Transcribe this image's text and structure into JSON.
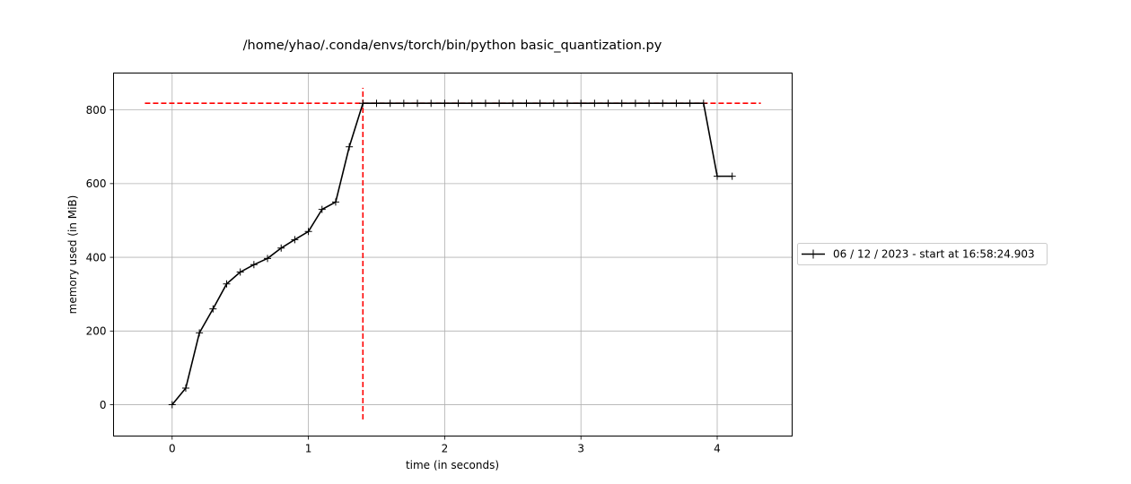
{
  "chart_data": {
    "type": "line",
    "title": "/home/yhao/.conda/envs/torch/bin/python basic_quantization.py",
    "xlabel": "time (in seconds)",
    "ylabel": "memory used (in MiB)",
    "xlim": [
      -0.43,
      4.55
    ],
    "ylim": [
      -85,
      900
    ],
    "xticks": [
      0,
      1,
      2,
      3,
      4
    ],
    "yticks": [
      0,
      200,
      400,
      600,
      800
    ],
    "grid": true,
    "legend_position": "outside-right",
    "series": [
      {
        "name": "06 / 12 / 2023 - start at 16:58:24.903",
        "color": "#000000",
        "marker": "plus",
        "x": [
          0.0,
          0.1,
          0.2,
          0.3,
          0.4,
          0.5,
          0.6,
          0.7,
          0.8,
          0.9,
          1.0,
          1.1,
          1.2,
          1.3,
          1.4,
          1.5,
          1.6,
          1.7,
          1.8,
          1.9,
          2.0,
          2.1,
          2.2,
          2.3,
          2.4,
          2.5,
          2.6,
          2.7,
          2.8,
          2.9,
          3.0,
          3.1,
          3.2,
          3.3,
          3.4,
          3.5,
          3.6,
          3.7,
          3.8,
          3.9,
          4.0,
          4.11
        ],
        "y": [
          0,
          45,
          195,
          260,
          328,
          360,
          380,
          397,
          425,
          448,
          470,
          530,
          550,
          700,
          818,
          818,
          818,
          818,
          818,
          818,
          818,
          818,
          818,
          818,
          818,
          818,
          818,
          818,
          818,
          818,
          818,
          818,
          818,
          818,
          818,
          818,
          818,
          818,
          818,
          818,
          620,
          620
        ]
      }
    ],
    "reference_lines": [
      {
        "orientation": "horizontal",
        "value": 818,
        "from": -0.2,
        "to": 4.32,
        "color": "#ff0000",
        "style": "dashed"
      },
      {
        "orientation": "vertical",
        "value": 1.4,
        "from": -40,
        "to": 860,
        "color": "#ff0000",
        "style": "dashed"
      }
    ]
  }
}
